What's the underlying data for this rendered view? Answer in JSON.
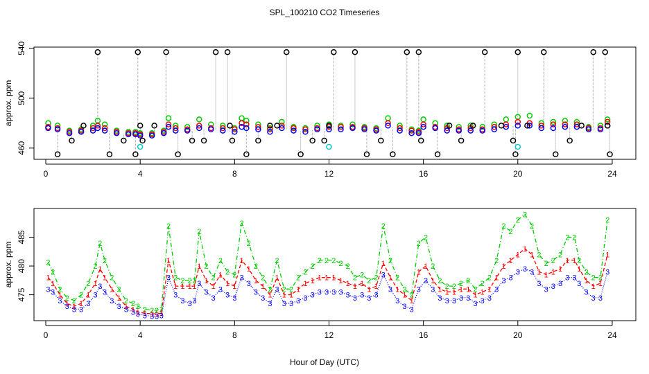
{
  "figure": {
    "title": "SPL_100210  CO2 Timeseries",
    "xlabel": "Hour of Day (UTC)"
  },
  "chart_data": [
    {
      "type": "scatter",
      "panel": "top",
      "title": "SPL_100210  CO2 Timeseries",
      "xlabel": "",
      "ylabel": "approx. ppm",
      "xlim": [
        -0.5,
        25.0
      ],
      "ylim": [
        451,
        541
      ],
      "xticks": [
        0,
        4,
        8,
        12,
        16,
        20,
        24
      ],
      "yticks": [
        460,
        500,
        540
      ],
      "colors": {
        "raw": "#000000",
        "upper": "#00cc00",
        "mid": "#ff0000",
        "lower": "#0000ff",
        "flag": "#00cccc",
        "trace": "#999999"
      },
      "series": [
        {
          "name": "upper",
          "x": [
            0.1,
            0.5,
            1.0,
            1.5,
            2.0,
            2.2,
            2.5,
            3.0,
            3.5,
            3.8,
            4.0,
            4.5,
            5.0,
            5.2,
            5.5,
            6.0,
            6.5,
            7.0,
            7.5,
            8.0,
            8.3,
            8.5,
            9.0,
            9.5,
            10.0,
            10.5,
            11.0,
            11.5,
            12.0,
            12.5,
            13.0,
            13.5,
            14.0,
            14.5,
            15.0,
            15.5,
            15.8,
            16.0,
            16.5,
            17.0,
            17.5,
            18.0,
            18.5,
            19.0,
            19.5,
            20.0,
            20.5,
            21.0,
            21.5,
            22.0,
            22.5,
            23.0,
            23.5,
            23.8
          ],
          "y": [
            480,
            478,
            474,
            475,
            478,
            482,
            479,
            474,
            473,
            473,
            472,
            472,
            474,
            484,
            478,
            477,
            483,
            479,
            478,
            476,
            484,
            482,
            479,
            476,
            481,
            477,
            476,
            478,
            479,
            478,
            479,
            477,
            476,
            484,
            478,
            475,
            474,
            483,
            480,
            478,
            477,
            478,
            477,
            479,
            483,
            485,
            486,
            480,
            481,
            482,
            481,
            477,
            478,
            483
          ]
        },
        {
          "name": "mid",
          "x": [
            0.1,
            0.5,
            1.0,
            1.5,
            2.0,
            2.2,
            2.5,
            3.0,
            3.5,
            3.8,
            4.0,
            4.5,
            5.0,
            5.2,
            5.5,
            6.0,
            6.5,
            7.0,
            7.5,
            8.0,
            8.3,
            8.5,
            9.0,
            9.5,
            10.0,
            10.5,
            11.0,
            11.5,
            12.0,
            12.5,
            13.0,
            13.5,
            14.0,
            14.5,
            15.0,
            15.5,
            15.8,
            16.0,
            16.5,
            17.0,
            17.5,
            18.0,
            18.5,
            19.0,
            19.5,
            20.0,
            20.5,
            21.0,
            21.5,
            22.0,
            22.5,
            23.0,
            23.5,
            23.8
          ],
          "y": [
            477,
            476,
            473,
            474,
            476,
            478,
            476,
            473,
            472,
            472,
            471,
            471,
            473,
            479,
            476,
            475,
            478,
            476,
            476,
            475,
            480,
            479,
            477,
            475,
            478,
            476,
            475,
            476,
            477,
            477,
            477,
            476,
            475,
            480,
            476,
            474,
            473,
            479,
            477,
            476,
            475,
            476,
            475,
            477,
            479,
            481,
            480,
            478,
            479,
            479,
            479,
            476,
            476,
            481
          ]
        },
        {
          "name": "lower",
          "x": [
            0.1,
            0.5,
            1.0,
            1.5,
            2.0,
            2.2,
            2.5,
            3.0,
            3.5,
            3.8,
            4.0,
            4.5,
            5.0,
            5.2,
            5.5,
            6.0,
            6.5,
            7.0,
            7.5,
            8.0,
            8.3,
            8.5,
            9.0,
            9.5,
            10.0,
            10.5,
            11.0,
            11.5,
            12.0,
            12.5,
            13.0,
            13.5,
            14.0,
            14.5,
            15.0,
            15.5,
            15.8,
            16.0,
            16.5,
            17.0,
            17.5,
            18.0,
            18.5,
            19.0,
            19.5,
            20.0,
            20.5,
            21.0,
            21.5,
            22.0,
            22.5,
            23.0,
            23.5,
            23.8
          ],
          "y": [
            476,
            475,
            472,
            473,
            474,
            476,
            474,
            472,
            471,
            471,
            470,
            470,
            472,
            477,
            474,
            474,
            476,
            475,
            474,
            473,
            477,
            476,
            475,
            473,
            476,
            474,
            473,
            475,
            475,
            475,
            476,
            475,
            474,
            478,
            474,
            472,
            472,
            477,
            476,
            474,
            474,
            474,
            474,
            475,
            477,
            478,
            478,
            476,
            476,
            477,
            477,
            475,
            475,
            478
          ]
        },
        {
          "name": "raw",
          "x": [
            0.5,
            1.1,
            1.6,
            2.2,
            2.7,
            3.3,
            3.8,
            3.9,
            4.0,
            4.1,
            4.6,
            5.1,
            5.6,
            6.2,
            6.7,
            7.2,
            7.7,
            7.8,
            7.9,
            8.5,
            9.0,
            9.5,
            9.8,
            10.2,
            10.8,
            11.3,
            11.8,
            12.0,
            12.2,
            13.1,
            13.6,
            14.2,
            14.7,
            15.3,
            15.8,
            15.9,
            16.6,
            17.1,
            17.6,
            18.1,
            18.6,
            19.3,
            19.8,
            19.9,
            20.0,
            20.4,
            21.1,
            21.6,
            22.2,
            22.7,
            23.2,
            23.7,
            23.8,
            23.9
          ],
          "y": [
            455,
            466,
            478,
            537,
            455,
            466,
            455,
            537,
            478,
            466,
            478,
            537,
            455,
            466,
            466,
            537,
            537,
            478,
            466,
            455,
            466,
            478,
            478,
            537,
            455,
            466,
            466,
            478,
            537,
            537,
            455,
            466,
            455,
            537,
            537,
            466,
            455,
            478,
            466,
            478,
            537,
            478,
            466,
            455,
            537,
            478,
            537,
            455,
            466,
            478,
            537,
            537,
            478,
            455
          ]
        },
        {
          "name": "flag",
          "x": [
            4.0,
            12.0,
            20.0
          ],
          "y": [
            461,
            461,
            461
          ]
        }
      ]
    },
    {
      "type": "line",
      "panel": "bottom",
      "xlabel": "Hour of Day (UTC)",
      "ylabel": "approx. ppm",
      "xlim": [
        -0.5,
        25.0
      ],
      "ylim": [
        470.5,
        490
      ],
      "xticks": [
        0,
        4,
        8,
        12,
        16,
        20,
        24
      ],
      "yticks": [
        475,
        480,
        485
      ],
      "markers": {
        "upper": "2",
        "mid": "1",
        "lower": "3"
      },
      "series": [
        {
          "name": "upper",
          "x": [
            0.1,
            0.3,
            0.6,
            0.9,
            1.2,
            1.5,
            1.8,
            2.1,
            2.3,
            2.5,
            2.8,
            3.1,
            3.4,
            3.7,
            3.9,
            4.2,
            4.5,
            4.7,
            4.9,
            5.2,
            5.5,
            5.8,
            6.1,
            6.3,
            6.5,
            6.8,
            7.1,
            7.4,
            7.7,
            8.0,
            8.3,
            8.6,
            8.9,
            9.2,
            9.5,
            9.8,
            10.1,
            10.4,
            10.7,
            11.0,
            11.3,
            11.6,
            11.9,
            12.2,
            12.5,
            12.8,
            13.1,
            13.4,
            13.7,
            14.0,
            14.3,
            14.6,
            14.9,
            15.2,
            15.5,
            15.8,
            16.1,
            16.4,
            16.7,
            17.0,
            17.3,
            17.6,
            17.9,
            18.2,
            18.5,
            18.8,
            19.1,
            19.4,
            19.7,
            20.0,
            20.3,
            20.6,
            20.9,
            21.2,
            21.5,
            21.8,
            22.1,
            22.4,
            22.6,
            22.9,
            23.2,
            23.5,
            23.8
          ],
          "y": [
            480.7,
            479,
            476,
            474.5,
            474,
            475,
            477,
            480,
            484,
            481,
            478,
            476,
            474,
            473.5,
            473,
            472.5,
            472.3,
            472.3,
            472.5,
            487,
            478,
            477.5,
            477.5,
            477.5,
            486,
            480,
            478,
            481,
            479,
            478.5,
            487.5,
            484,
            480,
            478,
            476,
            481,
            476,
            476,
            478,
            479,
            480,
            481,
            481,
            481,
            480.5,
            480,
            478,
            478.5,
            477.5,
            478,
            487,
            481,
            478,
            476,
            475,
            484,
            485,
            480,
            477.5,
            476.5,
            476.5,
            477,
            477.5,
            476,
            477,
            478,
            481,
            487,
            486,
            488,
            489,
            487,
            482,
            480.5,
            481,
            482,
            485,
            485,
            481,
            479,
            478,
            478,
            488
          ]
        },
        {
          "name": "mid",
          "x": [
            0.1,
            0.3,
            0.6,
            0.9,
            1.2,
            1.5,
            1.8,
            2.1,
            2.3,
            2.5,
            2.8,
            3.1,
            3.4,
            3.7,
            3.9,
            4.2,
            4.5,
            4.7,
            4.9,
            5.2,
            5.5,
            5.8,
            6.1,
            6.3,
            6.5,
            6.8,
            7.1,
            7.4,
            7.7,
            8.0,
            8.3,
            8.6,
            8.9,
            9.2,
            9.5,
            9.8,
            10.1,
            10.4,
            10.7,
            11.0,
            11.3,
            11.6,
            11.9,
            12.2,
            12.5,
            12.8,
            13.1,
            13.4,
            13.7,
            14.0,
            14.3,
            14.6,
            14.9,
            15.2,
            15.5,
            15.8,
            16.1,
            16.4,
            16.7,
            17.0,
            17.3,
            17.6,
            17.9,
            18.2,
            18.5,
            18.8,
            19.1,
            19.4,
            19.7,
            20.0,
            20.3,
            20.6,
            20.9,
            21.2,
            21.5,
            21.8,
            22.1,
            22.4,
            22.6,
            22.9,
            23.2,
            23.5,
            23.8
          ],
          "y": [
            478,
            477,
            475,
            473.5,
            473,
            473.5,
            475,
            477,
            479.5,
            478,
            476,
            474.5,
            473,
            472.5,
            472,
            471.8,
            471.7,
            471.7,
            471.8,
            481,
            476.5,
            476.5,
            476.5,
            476.5,
            480,
            477.5,
            476.5,
            478.5,
            477,
            476.5,
            481,
            479.5,
            477.5,
            476.5,
            475,
            478,
            475,
            475,
            476,
            477,
            477.5,
            478,
            478,
            478,
            477.5,
            477,
            476.5,
            477,
            476,
            476.5,
            480.5,
            478,
            476,
            475,
            474,
            479,
            480,
            477.5,
            476,
            475.5,
            475.5,
            476,
            476,
            475,
            475.5,
            476,
            478,
            480,
            481,
            482,
            483,
            482,
            479,
            478.5,
            479,
            479.5,
            481,
            481,
            479.5,
            477.5,
            476.5,
            477,
            482
          ]
        },
        {
          "name": "lower",
          "x": [
            0.1,
            0.3,
            0.6,
            0.9,
            1.2,
            1.5,
            1.8,
            2.1,
            2.3,
            2.5,
            2.8,
            3.1,
            3.4,
            3.7,
            3.9,
            4.2,
            4.5,
            4.7,
            4.9,
            5.2,
            5.5,
            5.8,
            6.1,
            6.3,
            6.5,
            6.8,
            7.1,
            7.4,
            7.7,
            8.0,
            8.3,
            8.6,
            8.9,
            9.2,
            9.5,
            9.8,
            10.1,
            10.4,
            10.7,
            11.0,
            11.3,
            11.6,
            11.9,
            12.2,
            12.5,
            12.8,
            13.1,
            13.4,
            13.7,
            14.0,
            14.3,
            14.6,
            14.9,
            15.2,
            15.5,
            15.8,
            16.1,
            16.4,
            16.7,
            17.0,
            17.3,
            17.6,
            17.9,
            18.2,
            18.5,
            18.8,
            19.1,
            19.4,
            19.7,
            20.0,
            20.3,
            20.6,
            20.9,
            21.2,
            21.5,
            21.8,
            22.1,
            22.4,
            22.6,
            22.9,
            23.2,
            23.5,
            23.8
          ],
          "y": [
            476,
            475.5,
            474,
            473,
            472.5,
            472.5,
            473.5,
            475,
            476.5,
            475.5,
            474,
            473,
            472.5,
            472,
            471.7,
            471.4,
            471.3,
            471.3,
            471.4,
            478,
            475,
            474,
            473.5,
            474,
            477,
            475.5,
            474.5,
            476,
            475,
            474.5,
            478,
            477,
            475.5,
            474.5,
            473.5,
            476,
            473.5,
            473.5,
            474,
            474.5,
            475,
            475.5,
            475.5,
            475.5,
            475.5,
            475,
            474.5,
            475,
            474.5,
            475,
            478.5,
            476,
            474,
            473,
            472.5,
            476,
            477.5,
            476,
            474.5,
            474,
            474,
            474.5,
            474.5,
            473.5,
            474,
            474.5,
            476,
            477.5,
            478,
            479,
            479.5,
            479,
            477,
            476,
            476.5,
            477,
            478,
            478,
            477,
            475.5,
            474.5,
            474.5,
            479
          ]
        }
      ]
    }
  ]
}
